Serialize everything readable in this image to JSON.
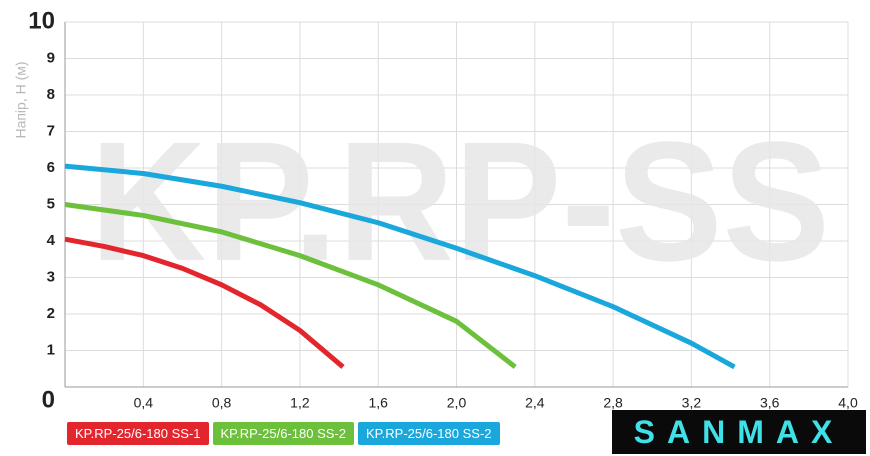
{
  "chart_data": {
    "type": "line",
    "watermark": "KP.RP-SS",
    "y_label": "Напір, Н (м)",
    "xlim": [
      0,
      4.0
    ],
    "ylim": [
      0,
      10
    ],
    "xticks": [
      {
        "value": 0.4,
        "label": "0,4"
      },
      {
        "value": 0.8,
        "label": "0,8"
      },
      {
        "value": 1.2,
        "label": "1,2"
      },
      {
        "value": 1.6,
        "label": "1,6"
      },
      {
        "value": 2.0,
        "label": "2,0"
      },
      {
        "value": 2.4,
        "label": "2,4"
      },
      {
        "value": 2.8,
        "label": "2,8"
      },
      {
        "value": 3.2,
        "label": "3,2"
      },
      {
        "value": 3.6,
        "label": "3,6"
      },
      {
        "value": 4.0,
        "label": "4,0"
      }
    ],
    "yticks": [
      0,
      1,
      2,
      3,
      4,
      5,
      6,
      7,
      8,
      9,
      10
    ],
    "grid": true,
    "series": [
      {
        "name": "KP.RP-25/6-180 SS-1",
        "color": "#e3262d",
        "x": [
          0,
          0.2,
          0.4,
          0.6,
          0.8,
          1.0,
          1.2,
          1.42
        ],
        "values": [
          4.05,
          3.85,
          3.6,
          3.25,
          2.8,
          2.25,
          1.55,
          0.55
        ]
      },
      {
        "name": "KP.RP-25/6-180 SS-2",
        "color": "#6cc03c",
        "x": [
          0,
          0.4,
          0.8,
          1.2,
          1.6,
          2.0,
          2.3
        ],
        "values": [
          5.0,
          4.7,
          4.25,
          3.6,
          2.8,
          1.8,
          0.55
        ]
      },
      {
        "name": "KP.RP-25/6-180 SS-2",
        "color": "#1aa7dc",
        "x": [
          0,
          0.4,
          0.8,
          1.2,
          1.6,
          2.0,
          2.4,
          2.8,
          3.2,
          3.42
        ],
        "values": [
          6.05,
          5.85,
          5.5,
          5.05,
          4.5,
          3.8,
          3.05,
          2.2,
          1.2,
          0.55
        ]
      }
    ],
    "logo": "SANMAX"
  }
}
